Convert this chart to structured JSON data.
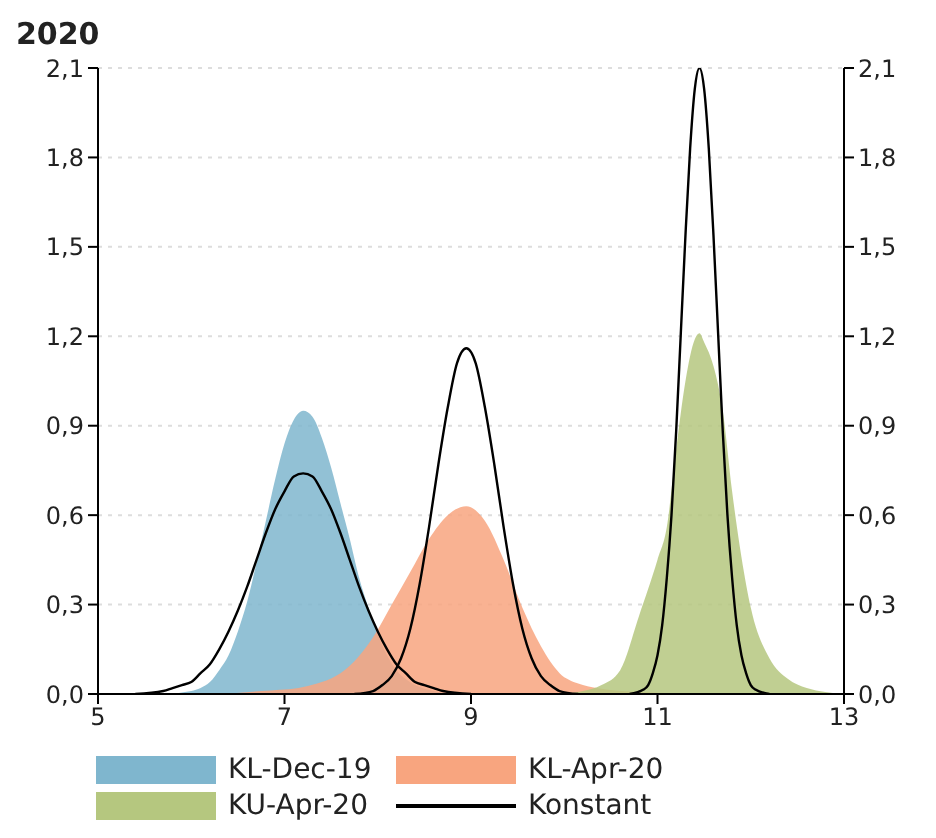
{
  "chart_data": {
    "type": "area",
    "title": "2020",
    "series": [
      {
        "name": "KL-Dec-19",
        "color": "#7fb6ce",
        "x": [
          5.8,
          5.9,
          6.0,
          6.1,
          6.2,
          6.3,
          6.4,
          6.5,
          6.6,
          6.7,
          6.8,
          6.9,
          7.0,
          7.1,
          7.2,
          7.3,
          7.4,
          7.5,
          7.6,
          7.7,
          7.8,
          7.9,
          8.0,
          8.1,
          8.2,
          8.3,
          8.4,
          8.6,
          8.8
        ],
        "values": [
          0,
          0.005,
          0.01,
          0.02,
          0.04,
          0.08,
          0.13,
          0.21,
          0.31,
          0.44,
          0.58,
          0.72,
          0.84,
          0.92,
          0.95,
          0.93,
          0.86,
          0.76,
          0.64,
          0.52,
          0.39,
          0.29,
          0.2,
          0.13,
          0.08,
          0.05,
          0.03,
          0.01,
          0
        ]
      },
      {
        "name": "KL-Apr-20",
        "color": "#f8a57f",
        "x": [
          6.35,
          6.75,
          7.15,
          7.35,
          7.55,
          7.75,
          7.95,
          8.15,
          8.35,
          8.55,
          8.75,
          8.95,
          9.15,
          9.35,
          9.55,
          9.75,
          9.95,
          10.15,
          10.35,
          10.55,
          10.95,
          11.35
        ],
        "values": [
          0,
          0.01,
          0.02,
          0.035,
          0.06,
          0.11,
          0.19,
          0.3,
          0.41,
          0.52,
          0.6,
          0.63,
          0.58,
          0.45,
          0.29,
          0.16,
          0.07,
          0.035,
          0.02,
          0.012,
          0.005,
          0
        ]
      },
      {
        "name": "KU-Apr-20",
        "color": "#b5c77f",
        "x": [
          10.0,
          10.2,
          10.4,
          10.6,
          10.8,
          11.0,
          11.1,
          11.2,
          11.3,
          11.4,
          11.45,
          11.5,
          11.6,
          11.7,
          11.8,
          11.9,
          12.0,
          12.2,
          12.4,
          12.6,
          13.0
        ],
        "values": [
          0,
          0.01,
          0.03,
          0.08,
          0.26,
          0.45,
          0.56,
          0.82,
          1.05,
          1.19,
          1.21,
          1.18,
          1.1,
          0.95,
          0.68,
          0.46,
          0.29,
          0.12,
          0.05,
          0.02,
          0
        ]
      },
      {
        "name": "Konstant",
        "type": "line",
        "color": "#000000",
        "x": [
          5.4,
          5.7,
          5.8,
          5.9,
          6.0,
          6.1,
          6.2,
          6.3,
          6.4,
          6.5,
          6.6,
          6.7,
          6.8,
          6.9,
          7.0,
          7.1,
          7.2,
          7.3,
          7.4,
          7.5,
          7.6,
          7.7,
          7.8,
          7.9,
          8.0,
          8.1,
          8.2,
          8.3,
          8.4,
          8.5,
          8.6,
          8.7,
          9.0
        ],
        "values": [
          0,
          0.01,
          0.02,
          0.03,
          0.04,
          0.07,
          0.1,
          0.15,
          0.21,
          0.28,
          0.36,
          0.45,
          0.54,
          0.62,
          0.68,
          0.73,
          0.74,
          0.73,
          0.68,
          0.62,
          0.54,
          0.45,
          0.36,
          0.28,
          0.21,
          0.15,
          0.1,
          0.07,
          0.04,
          0.03,
          0.02,
          0.01,
          0
        ]
      },
      {
        "type": "line",
        "color": "#000000",
        "x": [
          7.75,
          7.95,
          8.05,
          8.15,
          8.25,
          8.35,
          8.45,
          8.55,
          8.65,
          8.75,
          8.85,
          8.95,
          9.05,
          9.15,
          9.25,
          9.35,
          9.45,
          9.55,
          9.65,
          9.75,
          9.85,
          9.95,
          10.15
        ],
        "values": [
          0,
          0.01,
          0.03,
          0.06,
          0.12,
          0.22,
          0.37,
          0.56,
          0.77,
          0.96,
          1.11,
          1.16,
          1.11,
          0.96,
          0.77,
          0.56,
          0.37,
          0.22,
          0.12,
          0.06,
          0.03,
          0.01,
          0
        ]
      },
      {
        "type": "line",
        "color": "#000000",
        "x": [
          10.7,
          10.85,
          10.9,
          10.95,
          11.0,
          11.05,
          11.1,
          11.15,
          11.2,
          11.25,
          11.3,
          11.35,
          11.4,
          11.45,
          11.5,
          11.55,
          11.6,
          11.65,
          11.7,
          11.75,
          11.8,
          11.85,
          11.9,
          11.95,
          12.0,
          12.05,
          12.2
        ],
        "values": [
          0,
          0.015,
          0.03,
          0.07,
          0.13,
          0.23,
          0.39,
          0.6,
          0.88,
          1.21,
          1.54,
          1.83,
          2.03,
          2.1,
          2.03,
          1.83,
          1.54,
          1.21,
          0.88,
          0.6,
          0.39,
          0.23,
          0.13,
          0.07,
          0.03,
          0.015,
          0
        ]
      }
    ],
    "xlim": [
      5,
      13
    ],
    "xticks": [
      5,
      7,
      9,
      11,
      13
    ],
    "ylim": [
      0,
      2.1
    ],
    "yticks": [
      {
        "value": 0,
        "label": "0,0"
      },
      {
        "value": 0.3,
        "label": "0,3"
      },
      {
        "value": 0.6,
        "label": "0,6"
      },
      {
        "value": 0.9,
        "label": "0,9"
      },
      {
        "value": 1.2,
        "label": "1,2"
      },
      {
        "value": 1.5,
        "label": "1,5"
      },
      {
        "value": 1.8,
        "label": "1,8"
      },
      {
        "value": 2.1,
        "label": "2,1"
      }
    ],
    "y2lim": [
      0,
      2.1
    ],
    "y2ticks": [
      {
        "value": 0,
        "label": "0,0"
      },
      {
        "value": 0.3,
        "label": "0,3"
      },
      {
        "value": 0.6,
        "label": "0,6"
      },
      {
        "value": 0.9,
        "label": "0,9"
      },
      {
        "value": 1.2,
        "label": "1,2"
      },
      {
        "value": 1.5,
        "label": "1,5"
      },
      {
        "value": 1.8,
        "label": "1,8"
      },
      {
        "value": 2.1,
        "label": "2,1"
      }
    ],
    "grid": "y",
    "legend": "bottom"
  }
}
